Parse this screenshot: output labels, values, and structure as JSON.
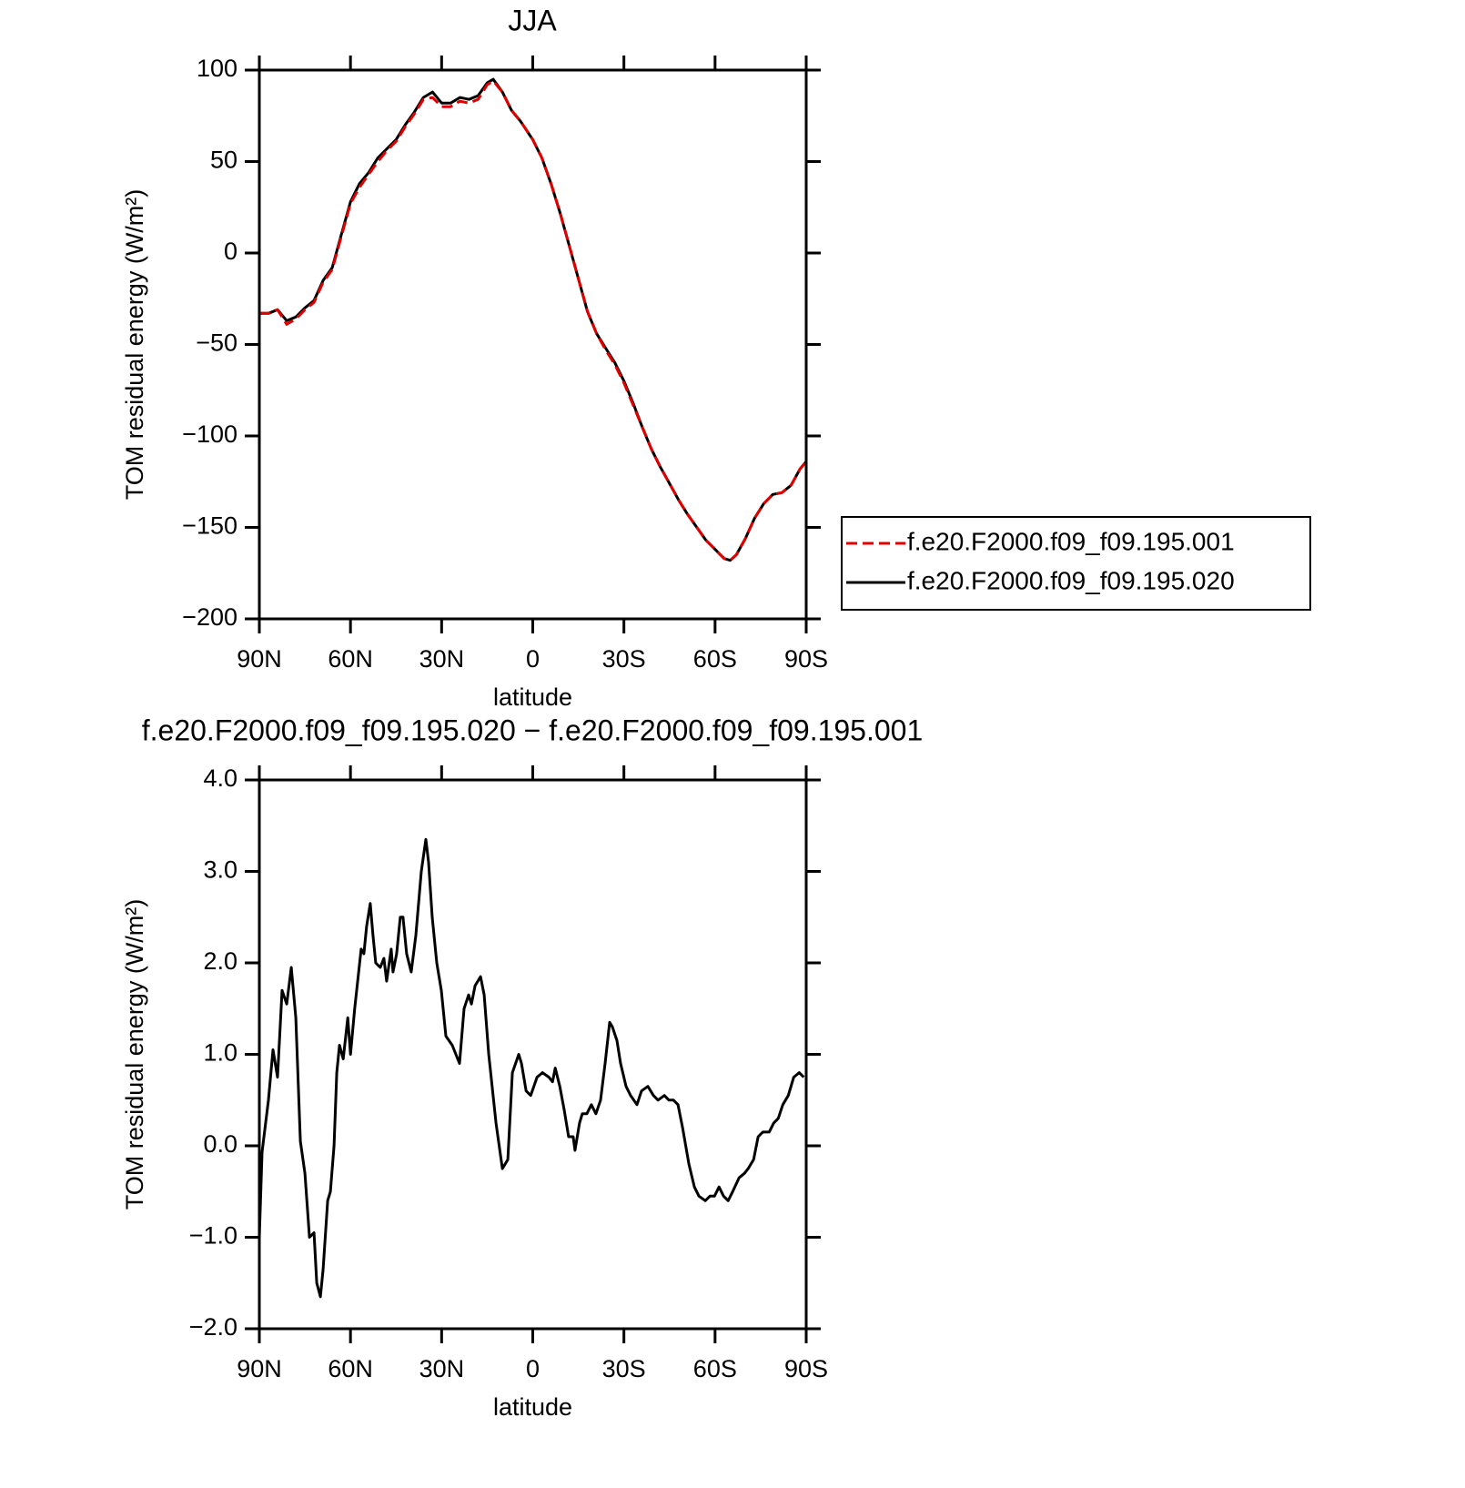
{
  "chart_data": [
    {
      "type": "line",
      "title": "JJA",
      "xlabel": "latitude",
      "ylabel": "TOM residual energy (W/m²)",
      "xlim": [
        90,
        -90
      ],
      "ylim": [
        -200,
        100
      ],
      "xticks": [
        {
          "value": 90,
          "label": "90N"
        },
        {
          "value": 60,
          "label": "60N"
        },
        {
          "value": 30,
          "label": "30N"
        },
        0,
        {
          "value": -30,
          "label": "30S"
        },
        {
          "value": -60,
          "label": "60S"
        },
        {
          "value": -90,
          "label": "90S"
        }
      ],
      "yticks": [
        {
          "value": -200,
          "label": "−200"
        },
        {
          "value": -150,
          "label": "−150"
        },
        {
          "value": -100,
          "label": "−100"
        },
        {
          "value": -50,
          "label": "−50"
        },
        0,
        50,
        100
      ],
      "legend": "right",
      "x": [
        90,
        87,
        84,
        81,
        78,
        75,
        72,
        69,
        66,
        63,
        60,
        57,
        54,
        51,
        48,
        45,
        42,
        39,
        36,
        33,
        30,
        27,
        24,
        21,
        18,
        15,
        13,
        10,
        7,
        4,
        0,
        -3,
        -6,
        -9,
        -12,
        -15,
        -18,
        -21,
        -24,
        -27,
        -30,
        -33,
        -36,
        -39,
        -42,
        -45,
        -48,
        -51,
        -54,
        -57,
        -60,
        -63,
        -65,
        -67,
        -70,
        -73,
        -76,
        -79,
        -82,
        -85,
        -88,
        -90
      ],
      "series": [
        {
          "name": "f.e20.F2000.f09_f09.195.001",
          "color": "#e00000",
          "linestyle": "dashed",
          "values": [
            -33,
            -33,
            -31,
            -39,
            -36,
            -31,
            -27,
            -16,
            -9,
            9,
            27,
            36,
            43,
            50,
            56,
            61,
            69,
            76,
            84,
            85,
            80,
            80,
            83,
            82,
            84,
            92,
            94,
            88,
            78,
            72,
            62,
            52,
            38,
            22,
            4,
            -14,
            -32,
            -44,
            -53,
            -61,
            -71,
            -83,
            -95,
            -107,
            -117,
            -126,
            -135,
            -143,
            -150,
            -157,
            -162,
            -167,
            -168,
            -165,
            -156,
            -145,
            -137,
            -132,
            -131,
            -127,
            -118,
            -114
          ]
        },
        {
          "name": "f.e20.F2000.f09_f09.195.020",
          "color": "#000000",
          "linestyle": "solid",
          "values": [
            -33,
            -33,
            -31,
            -37,
            -35,
            -30,
            -26,
            -15,
            -8,
            10,
            28,
            38,
            44,
            52,
            57,
            62,
            70,
            77,
            85,
            88,
            82,
            82,
            85,
            84,
            86,
            93,
            95,
            88,
            78,
            72,
            62,
            52,
            38,
            22,
            4,
            -14,
            -32,
            -44,
            -52,
            -60,
            -70,
            -82,
            -95,
            -107,
            -117,
            -126,
            -135,
            -143,
            -150,
            -157,
            -162,
            -167,
            -168,
            -165,
            -156,
            -145,
            -137,
            -132,
            -131,
            -127,
            -118,
            -114
          ]
        }
      ]
    },
    {
      "type": "line",
      "title": "f.e20.F2000.f09_f09.195.020 − f.e20.F2000.f09_f09.195.001",
      "xlabel": "latitude",
      "ylabel": "TOM residual energy (W/m²)",
      "xlim": [
        90,
        -90
      ],
      "ylim": [
        -2,
        4
      ],
      "xticks": [
        {
          "value": 90,
          "label": "90N"
        },
        {
          "value": 60,
          "label": "60N"
        },
        {
          "value": 30,
          "label": "30N"
        },
        0,
        {
          "value": -30,
          "label": "30S"
        },
        {
          "value": -60,
          "label": "60S"
        },
        {
          "value": -90,
          "label": "90S"
        }
      ],
      "yticks": [
        {
          "value": -2,
          "label": "−2.0"
        },
        {
          "value": -1,
          "label": "−1.0"
        },
        {
          "value": 0,
          "label": "0.0"
        },
        {
          "value": 1,
          "label": "1.0"
        },
        {
          "value": 2,
          "label": "2.0"
        },
        {
          "value": 3,
          "label": "3.0"
        },
        {
          "value": 4,
          "label": "4.0"
        }
      ],
      "x": [
        90,
        89.1,
        87.0,
        85.5,
        84.0,
        82.5,
        81.0,
        79.5,
        78.0,
        76.5,
        75.0,
        73.5,
        72.0,
        71.1,
        69.9,
        69.0,
        67.5,
        66.6,
        65.4,
        64.5,
        63.6,
        62.4,
        60.9,
        60.0,
        58.6,
        56.5,
        55.6,
        54.7,
        53.5,
        52.6,
        51.7,
        50.2,
        49.0,
        48.1,
        46.6,
        46.0,
        44.8,
        43.6,
        42.7,
        41.5,
        40.0,
        38.5,
        36.7,
        35.2,
        34.3,
        33.1,
        31.6,
        30.1,
        28.6,
        26.5,
        24.1,
        22.6,
        21.1,
        20.2,
        19.0,
        17.2,
        16.0,
        14.5,
        12.1,
        10.0,
        8.2,
        6.7,
        4.6,
        3.7,
        2.2,
        0.7,
        -1.4,
        -3.2,
        -5.3,
        -6.5,
        -7.4,
        -8.9,
        -10.3,
        -11.8,
        -13.3,
        -13.9,
        -15.4,
        -16.3,
        -17.8,
        -19.3,
        -20.8,
        -22.3,
        -23.8,
        -25.3,
        -26.2,
        -27.7,
        -28.9,
        -30.7,
        -32.2,
        -34.3,
        -35.8,
        -37.9,
        -39.7,
        -41.2,
        -43.3,
        -44.8,
        -46.3,
        -47.8,
        -49.3,
        -51.4,
        -53.2,
        -54.7,
        -56.8,
        -58.3,
        -59.8,
        -61.3,
        -62.8,
        -64.3,
        -65.8,
        -67.9,
        -69.7,
        -70.9,
        -72.7,
        -74.2,
        -75.7,
        -77.8,
        -79.3,
        -80.8,
        -82.3,
        -84.1,
        -85.9,
        -87.7,
        -89.2
      ],
      "series": [
        {
          "color": "#000000",
          "linestyle": "solid",
          "values": [
            -1.0,
            -0.07,
            0.5,
            1.05,
            0.75,
            1.7,
            1.55,
            1.95,
            1.4,
            0.05,
            -0.3,
            -1.0,
            -0.95,
            -1.5,
            -1.65,
            -1.35,
            -0.6,
            -0.5,
            0.0,
            0.8,
            1.1,
            0.95,
            1.4,
            1.0,
            1.5,
            2.15,
            2.1,
            2.4,
            2.65,
            2.3,
            2.0,
            1.95,
            2.05,
            1.8,
            2.15,
            1.9,
            2.1,
            2.5,
            2.5,
            2.1,
            1.9,
            2.3,
            3.0,
            3.35,
            3.1,
            2.5,
            2.0,
            1.7,
            1.2,
            1.1,
            0.9,
            1.5,
            1.65,
            1.55,
            1.75,
            1.85,
            1.65,
            1.0,
            0.25,
            -0.25,
            -0.15,
            0.8,
            1.0,
            0.9,
            0.6,
            0.55,
            0.75,
            0.8,
            0.75,
            0.7,
            0.85,
            0.65,
            0.4,
            0.1,
            0.1,
            -0.05,
            0.25,
            0.35,
            0.35,
            0.45,
            0.35,
            0.5,
            0.9,
            1.35,
            1.3,
            1.15,
            0.9,
            0.65,
            0.55,
            0.45,
            0.6,
            0.65,
            0.55,
            0.5,
            0.55,
            0.5,
            0.5,
            0.45,
            0.2,
            -0.2,
            -0.45,
            -0.55,
            -0.6,
            -0.55,
            -0.55,
            -0.45,
            -0.55,
            -0.6,
            -0.5,
            -0.35,
            -0.3,
            -0.25,
            -0.15,
            0.1,
            0.15,
            0.15,
            0.25,
            0.3,
            0.45,
            0.55,
            0.75,
            0.8,
            0.75
          ]
        }
      ]
    }
  ]
}
